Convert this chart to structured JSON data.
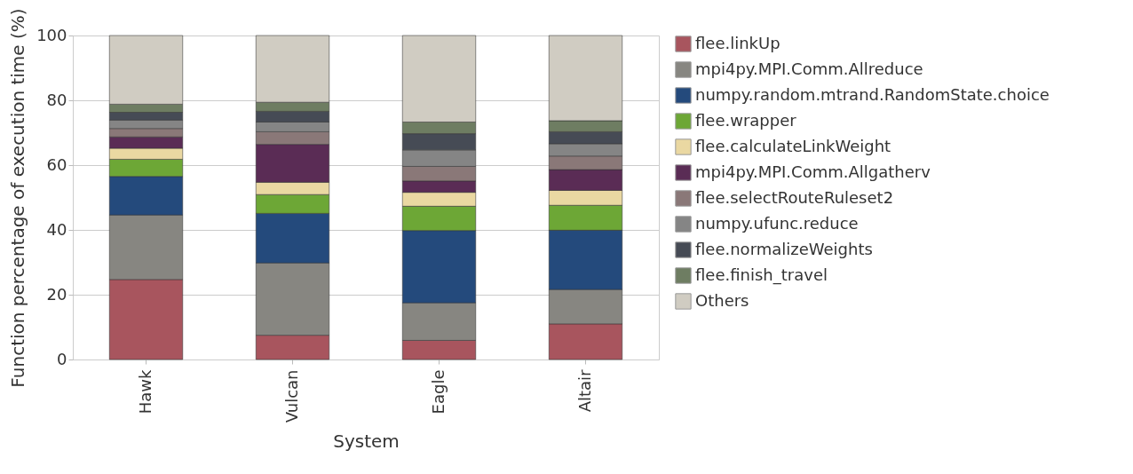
{
  "chart_data": {
    "type": "bar",
    "stacked": true,
    "xlabel": "System",
    "ylabel": "Function percentage of execution time (%)",
    "categories": [
      "Hawk",
      "Vulcan",
      "Eagle",
      "Altair"
    ],
    "ylim": [
      0,
      100
    ],
    "yticks": [
      0,
      20,
      40,
      60,
      80,
      100
    ],
    "grid": "y",
    "legend": "right",
    "series": [
      {
        "name": "flee.linkUp",
        "color": "#a8555e",
        "values": [
          24.7,
          7.5,
          5.9,
          11.0
        ]
      },
      {
        "name": "mpi4py.MPI.Comm.Allreduce",
        "color": "#878681",
        "values": [
          19.9,
          22.3,
          11.6,
          10.6
        ]
      },
      {
        "name": "numpy.random.mtrand.RandomState.choice",
        "color": "#244a7c",
        "values": [
          11.9,
          15.3,
          22.3,
          18.3
        ]
      },
      {
        "name": "flee.wrapper",
        "color": "#6da736",
        "values": [
          5.3,
          5.8,
          7.5,
          7.7
        ]
      },
      {
        "name": "flee.calculateLinkWeight",
        "color": "#ead8a2",
        "values": [
          3.4,
          3.8,
          4.3,
          4.6
        ]
      },
      {
        "name": "mpi4py.MPI.Comm.Allgatherv",
        "color": "#5a2c55",
        "values": [
          3.5,
          11.7,
          3.5,
          6.4
        ]
      },
      {
        "name": "flee.selectRouteRuleset2",
        "color": "#8a7878",
        "values": [
          2.6,
          3.9,
          4.5,
          4.2
        ]
      },
      {
        "name": "numpy.ufunc.reduce",
        "color": "#858585",
        "values": [
          2.6,
          3.0,
          5.1,
          3.8
        ]
      },
      {
        "name": "flee.normalizeWeights",
        "color": "#464b55",
        "values": [
          2.4,
          3.3,
          5.0,
          3.7
        ]
      },
      {
        "name": "flee.finish_travel",
        "color": "#6e7d62",
        "values": [
          2.5,
          2.8,
          3.6,
          3.4
        ]
      },
      {
        "name": "Others",
        "color": "#d0ccc2",
        "values": [
          21.2,
          20.6,
          26.7,
          26.3
        ]
      }
    ]
  }
}
